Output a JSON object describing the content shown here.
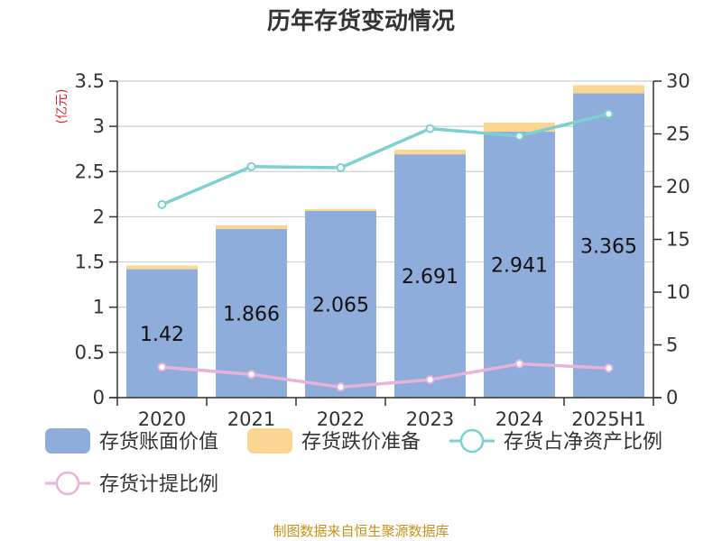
{
  "chart_data": {
    "type": "bar",
    "title": "历年存货变动情况",
    "unit_left": "(亿元)",
    "categories": [
      "2020",
      "2021",
      "2022",
      "2023",
      "2024",
      "2025H1"
    ],
    "ylim_left": [
      0,
      3.5
    ],
    "yticks_left": [
      "0",
      "0.5",
      "1",
      "1.5",
      "2",
      "2.5",
      "3",
      "3.5"
    ],
    "ylim_right": [
      0,
      30
    ],
    "yticks_right": [
      "0",
      "5",
      "10",
      "15",
      "20",
      "25",
      "30"
    ],
    "series": [
      {
        "name": "存货账面价值",
        "kind": "bar",
        "axis": "left",
        "values": [
          1.42,
          1.866,
          2.065,
          2.691,
          2.941,
          3.365
        ],
        "labels": [
          "1.42",
          "1.866",
          "2.065",
          "2.691",
          "2.941",
          "3.365"
        ]
      },
      {
        "name": "存货跌价准备",
        "kind": "bar-stack",
        "axis": "left",
        "values": [
          0.04,
          0.04,
          0.02,
          0.05,
          0.1,
          0.09
        ]
      },
      {
        "name": "存货占净资产比例",
        "kind": "line",
        "axis": "right",
        "values": [
          18.3,
          21.9,
          21.8,
          25.5,
          24.8,
          26.9
        ]
      },
      {
        "name": "存货计提比例",
        "kind": "line",
        "axis": "right",
        "values": [
          2.9,
          2.2,
          1.0,
          1.7,
          3.2,
          2.8
        ]
      }
    ],
    "colors": {
      "book_value": "#8fadda",
      "provision": "#fbd592",
      "net_asset_ratio": "#7dd0d2",
      "provision_ratio": "#e8b3d8",
      "unit_text": "#d9262b",
      "source_text": "#c8901a"
    },
    "grid": true,
    "legend_position": "bottom",
    "source": "制图数据来自恒生聚源数据库"
  }
}
